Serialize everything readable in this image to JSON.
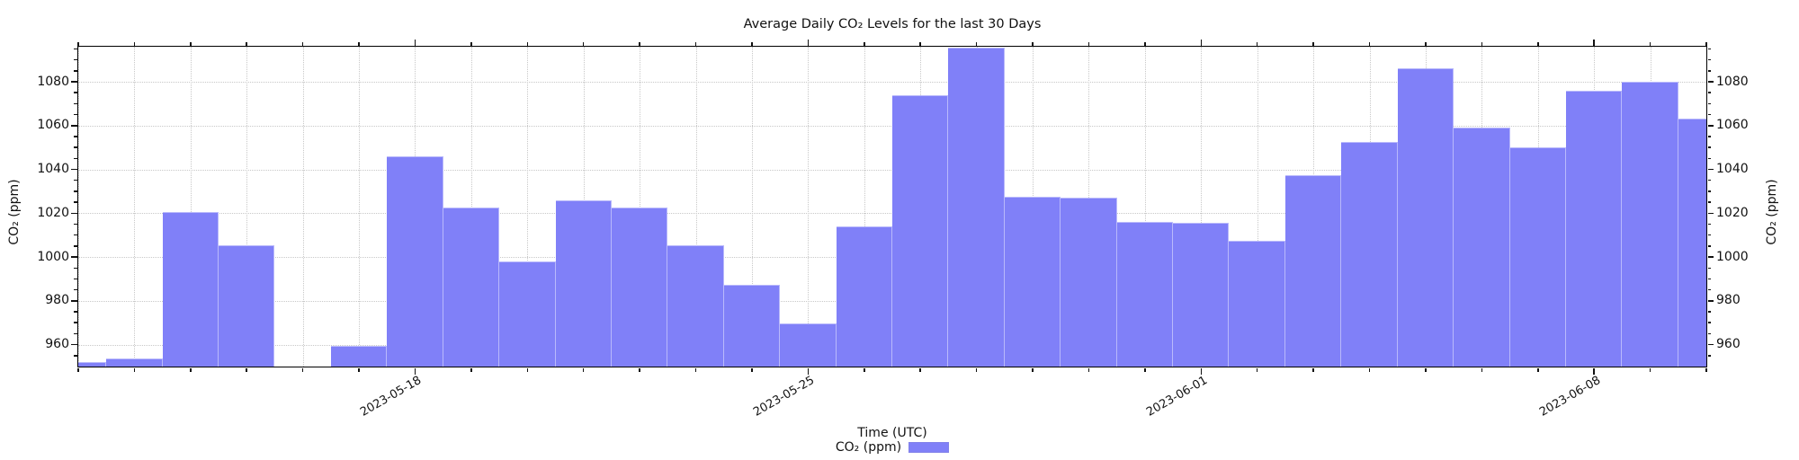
{
  "chart_data": {
    "type": "bar",
    "title": "Average Daily CO₂ Levels for the last 30 Days",
    "xlabel": "Time (UTC)",
    "ylabel_left": "CO₂ (ppm)",
    "ylabel_right": "CO₂ (ppm)",
    "legend": {
      "label": "CO₂ (ppm)",
      "swatch_color": "#8080f8",
      "position": "below-axis"
    },
    "bar_color": "#8080f8",
    "grid": true,
    "ylim": [
      950,
      1096
    ],
    "yticks": [
      960,
      980,
      1000,
      1020,
      1040,
      1060,
      1080
    ],
    "ytick_minor_step": 5,
    "x": [
      "2023-05-12",
      "2023-05-13",
      "2023-05-14",
      "2023-05-15",
      "2023-05-16",
      "2023-05-17",
      "2023-05-18",
      "2023-05-19",
      "2023-05-20",
      "2023-05-21",
      "2023-05-22",
      "2023-05-23",
      "2023-05-24",
      "2023-05-25",
      "2023-05-26",
      "2023-05-27",
      "2023-05-28",
      "2023-05-29",
      "2023-05-30",
      "2023-05-31",
      "2023-06-01",
      "2023-06-02",
      "2023-06-03",
      "2023-06-04",
      "2023-06-05",
      "2023-06-06",
      "2023-06-07",
      "2023-06-08",
      "2023-06-09",
      "2023-06-10"
    ],
    "values": [
      952,
      953.5,
      1020.5,
      1005.5,
      null,
      959.5,
      1046,
      1022.5,
      998,
      1026,
      1022.5,
      1005.5,
      987.5,
      969.5,
      1014,
      1074,
      1095.5,
      1027.5,
      1027,
      1016,
      1015.5,
      1007.5,
      1037.5,
      1052.5,
      1086,
      1059,
      1050,
      1076,
      1080,
      1063
    ],
    "xticks": [
      {
        "index": 6,
        "label": "2023-05-18"
      },
      {
        "index": 13,
        "label": "2023-05-25"
      },
      {
        "index": 20,
        "label": "2023-06-01"
      },
      {
        "index": 27,
        "label": "2023-06-08"
      }
    ]
  }
}
